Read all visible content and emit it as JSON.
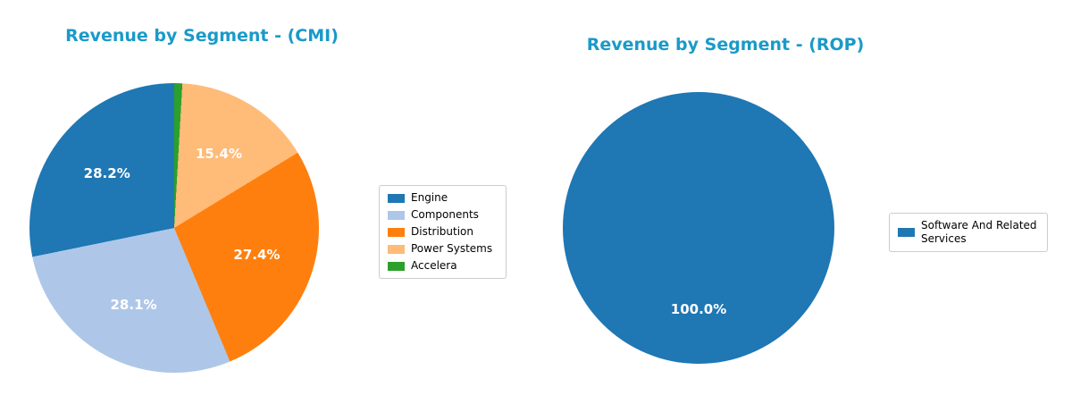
{
  "styles": {
    "title_color": "#1a9ac8",
    "autopct_color": "#ffffff",
    "legend_border": "#cccccc",
    "background": "#ffffff"
  },
  "chart_data": [
    {
      "type": "pie",
      "title": "Revenue by Segment - (CMI)",
      "labels": [
        "Engine",
        "Components",
        "Distribution",
        "Power Systems",
        "Accelera"
      ],
      "values": [
        28.2,
        28.1,
        27.4,
        15.4,
        0.9
      ],
      "autopct_labels": [
        "28.2%",
        "28.1%",
        "27.4%",
        "15.4%",
        null
      ],
      "colors": [
        "#1f77b4",
        "#aec7e8",
        "#ff7f0e",
        "#ffbb78",
        "#2ca02c"
      ],
      "start_angle": 90,
      "direction": "counterclockwise",
      "legend_position": "right",
      "legend_entries": [
        "Engine",
        "Components",
        "Distribution",
        "Power Systems",
        "Accelera"
      ]
    },
    {
      "type": "pie",
      "title": "Revenue by Segment - (ROP)",
      "labels": [
        "Software And Related Services"
      ],
      "values": [
        100.0
      ],
      "autopct_labels": [
        "100.0%"
      ],
      "colors": [
        "#1f77b4"
      ],
      "start_angle": 90,
      "direction": "counterclockwise",
      "legend_position": "right",
      "legend_entries": [
        "Software And Related Services"
      ]
    }
  ]
}
